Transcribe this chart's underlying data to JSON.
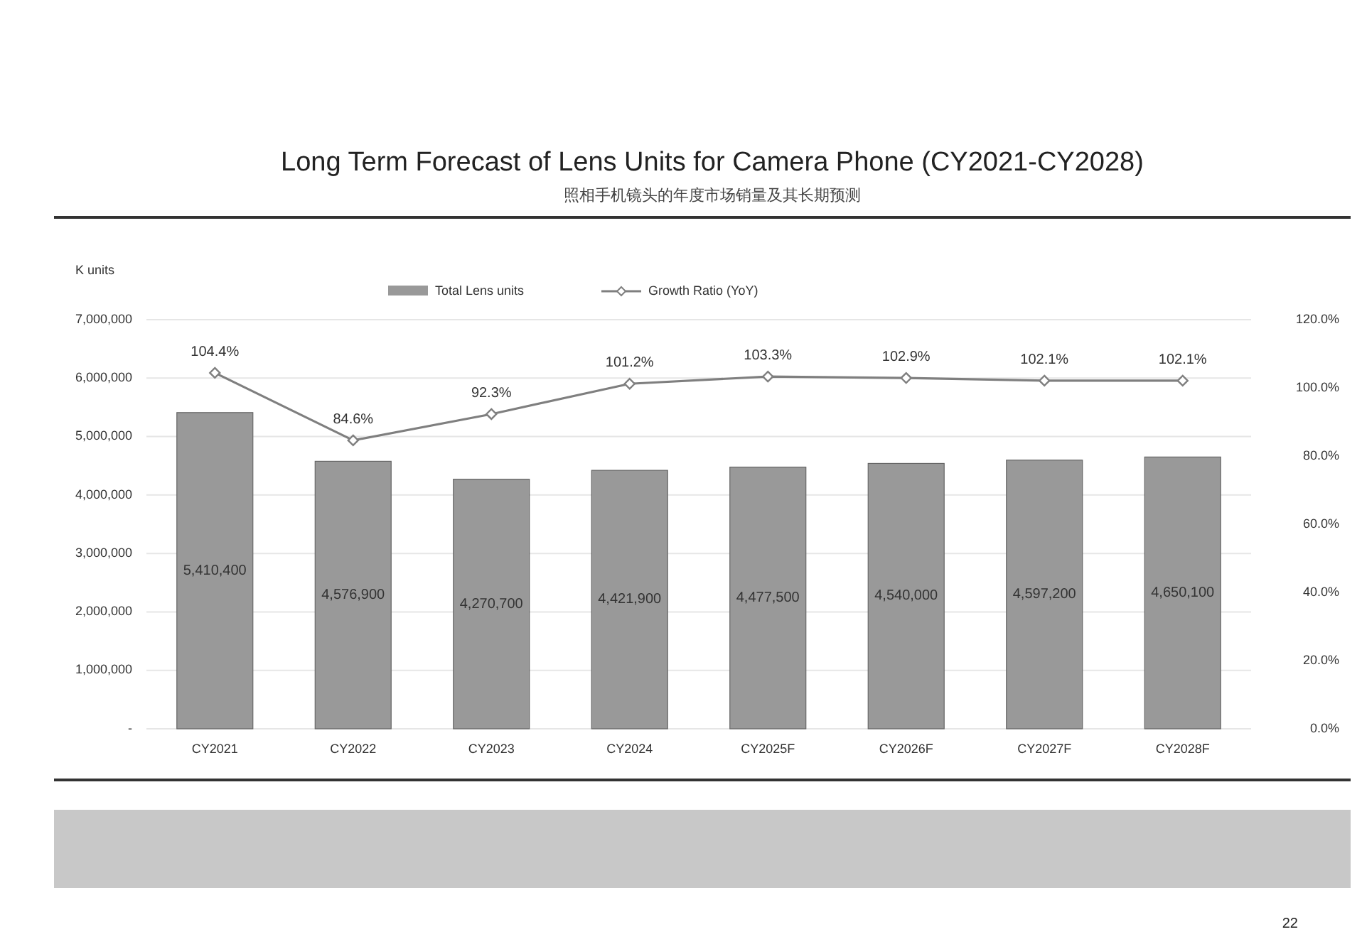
{
  "chart_data": {
    "type": "bar",
    "title": "Long Term Forecast of Lens Units for Camera Phone (CY2021-CY2028)",
    "subtitle": "照相手机镜头的年度市场销量及其长期预测",
    "ylabel": "K units",
    "categories": [
      "CY2021",
      "CY2022",
      "CY2023",
      "CY2024",
      "CY2025F",
      "CY2026F",
      "CY2027F",
      "CY2028F"
    ],
    "series": [
      {
        "name": "Total Lens units",
        "color": "#999999",
        "values": [
          5410400,
          4576900,
          4270700,
          4421900,
          4477500,
          4540000,
          4597200,
          4650100
        ],
        "value_labels": [
          "5,410,400",
          "4,576,900",
          "4,270,700",
          "4,421,900",
          "4,477,500",
          "4,540,000",
          "4,597,200",
          "4,650,100"
        ]
      },
      {
        "name": "Growth Ratio (YoY)",
        "type": "line",
        "axis": "y2",
        "color": "#7f7f7f",
        "marker": "diamond",
        "values": [
          104.4,
          84.6,
          92.3,
          101.2,
          103.3,
          102.9,
          102.1,
          102.1
        ],
        "value_labels": [
          "104.4%",
          "84.6%",
          "92.3%",
          "101.2%",
          "103.3%",
          "102.9%",
          "102.1%",
          "102.1%"
        ]
      }
    ],
    "ylim": [
      0,
      7000000
    ],
    "yticks": [
      {
        "value": 0,
        "label": "-"
      },
      {
        "value": 1000000,
        "label": "1,000,000"
      },
      {
        "value": 2000000,
        "label": "2,000,000"
      },
      {
        "value": 3000000,
        "label": "3,000,000"
      },
      {
        "value": 4000000,
        "label": "4,000,000"
      },
      {
        "value": 5000000,
        "label": "5,000,000"
      },
      {
        "value": 6000000,
        "label": "6,000,000"
      },
      {
        "value": 7000000,
        "label": "7,000,000"
      }
    ],
    "y2lim": [
      0,
      120
    ],
    "y2ticks": [
      {
        "value": 0,
        "label": "0.0%"
      },
      {
        "value": 20,
        "label": "20.0%"
      },
      {
        "value": 40,
        "label": "40.0%"
      },
      {
        "value": 60,
        "label": "60.0%"
      },
      {
        "value": 80,
        "label": "80.0%"
      },
      {
        "value": 100,
        "label": "100.0%"
      },
      {
        "value": 120,
        "label": "120.0%"
      }
    ],
    "grid": "y",
    "legend": "top",
    "annotations": [
      "22"
    ]
  }
}
